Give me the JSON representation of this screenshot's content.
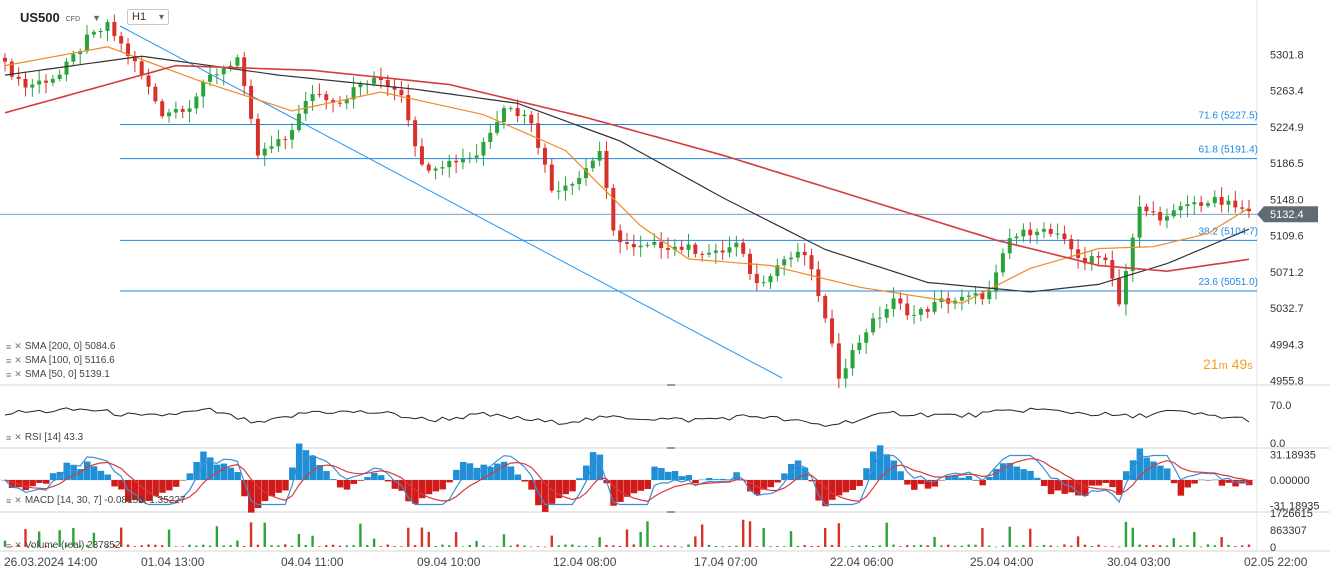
{
  "header": {
    "symbol": "US500",
    "symbol_sub": "CFD",
    "timeframe": "H1",
    "timeframe_caret": "▾"
  },
  "countdown": {
    "minutes": "21",
    "m_unit": "m",
    "seconds": "49",
    "s_unit": "s"
  },
  "legends": {
    "sma200": "SMA [200, 0] 5084.6",
    "sma100": "SMA [100, 0] 5116.6",
    "sma50": "SMA [50, 0] 5139.1",
    "rsi": "RSI [14] 43.3",
    "macd": "MACD [14, 30, 7] -0.08150, 1.35227",
    "volume": "Volume (real) 237852"
  },
  "colors": {
    "up": "#2aa33a",
    "down": "#d8312a",
    "sma50": "#f08a24",
    "sma100": "#333333",
    "sma200": "#d63c3c",
    "fib": "#1e88e5",
    "trendline": "#2196f3",
    "current_price_bg": "#5f6b75"
  },
  "chart_data": [
    {
      "type": "candlestick",
      "symbol": "US500",
      "timeframe": "H1",
      "price_axis_ticks": [
        5301.8,
        5263.4,
        5224.9,
        5186.5,
        5148.0,
        5109.6,
        5071.2,
        5032.7,
        4994.3,
        4955.8
      ],
      "price_axis_tick_labels": [
        "5301.8",
        "5263.4",
        "5224.9",
        "5186.5",
        "5148.0",
        "5109.6",
        "5071.2",
        "5032.7",
        "4994.3",
        "4955.8"
      ],
      "x_tick_labels": [
        "26.03.2024  14:00",
        "01.04  13:00",
        "04.04  11:00",
        "09.04  10:00",
        "12.04  08:00",
        "17.04  07:00",
        "22.04  06:00",
        "25.04  04:00",
        "30.04  03:00",
        "02.05  22:00"
      ],
      "current_price": 5132.4,
      "current_price_label": "5132.4",
      "fibonacci_levels": [
        {
          "label": "71.6 (5227.5)",
          "value": 5227.5
        },
        {
          "label": "61.8 (5191.4)",
          "value": 5191.4
        },
        {
          "label": "38.2 (5104.7)",
          "value": 5104.7
        },
        {
          "label": "23.6 (5051.0)",
          "value": 5051.0
        }
      ],
      "close_anchors": [
        [
          0,
          5290
        ],
        [
          3,
          5268
        ],
        [
          8,
          5280
        ],
        [
          12,
          5318
        ],
        [
          15,
          5332
        ],
        [
          19,
          5292
        ],
        [
          23,
          5240
        ],
        [
          27,
          5248
        ],
        [
          30,
          5278
        ],
        [
          34,
          5298
        ],
        [
          37,
          5195
        ],
        [
          41,
          5212
        ],
        [
          45,
          5262
        ],
        [
          49,
          5252
        ],
        [
          52,
          5270
        ],
        [
          55,
          5275
        ],
        [
          58,
          5262
        ],
        [
          61,
          5182
        ],
        [
          65,
          5188
        ],
        [
          69,
          5196
        ],
        [
          73,
          5248
        ],
        [
          77,
          5232
        ],
        [
          80,
          5158
        ],
        [
          84,
          5172
        ],
        [
          87,
          5200
        ],
        [
          89,
          5112
        ],
        [
          92,
          5095
        ],
        [
          96,
          5100
        ],
        [
          100,
          5096
        ],
        [
          104,
          5090
        ],
        [
          107,
          5100
        ],
        [
          110,
          5058
        ],
        [
          114,
          5085
        ],
        [
          117,
          5090
        ],
        [
          119,
          5048
        ],
        [
          122,
          4962
        ],
        [
          126,
          5010
        ],
        [
          130,
          5040
        ],
        [
          133,
          5025
        ],
        [
          137,
          5040
        ],
        [
          140,
          5042
        ],
        [
          144,
          5048
        ],
        [
          147,
          5106
        ],
        [
          151,
          5118
        ],
        [
          154,
          5108
        ],
        [
          158,
          5082
        ],
        [
          161,
          5088
        ],
        [
          163,
          5040
        ],
        [
          166,
          5138
        ],
        [
          170,
          5128
        ],
        [
          173,
          5143
        ],
        [
          177,
          5146
        ],
        [
          180,
          5140
        ],
        [
          182,
          5132.4
        ]
      ],
      "sma_series": [
        {
          "name": "SMA [50, 0]",
          "last": 5139.1,
          "anchors": [
            [
              0,
              5290
            ],
            [
              15,
              5310
            ],
            [
              28,
              5275
            ],
            [
              42,
              5242
            ],
            [
              55,
              5262
            ],
            [
              70,
              5238
            ],
            [
              82,
              5200
            ],
            [
              93,
              5120
            ],
            [
              100,
              5085
            ],
            [
              112,
              5078
            ],
            [
              125,
              5055
            ],
            [
              140,
              5038
            ],
            [
              150,
              5075
            ],
            [
              160,
              5096
            ],
            [
              168,
              5098
            ],
            [
              176,
              5112
            ],
            [
              182,
              5139.1
            ]
          ]
        },
        {
          "name": "SMA [100, 0]",
          "last": 5116.6,
          "anchors": [
            [
              0,
              5280
            ],
            [
              20,
              5300
            ],
            [
              40,
              5280
            ],
            [
              60,
              5265
            ],
            [
              75,
              5250
            ],
            [
              90,
              5210
            ],
            [
              105,
              5150
            ],
            [
              120,
              5095
            ],
            [
              135,
              5060
            ],
            [
              150,
              5050
            ],
            [
              160,
              5058
            ],
            [
              170,
              5080
            ],
            [
              182,
              5116.6
            ]
          ]
        },
        {
          "name": "SMA [200, 0]",
          "last": 5084.6,
          "anchors": [
            [
              0,
              5240
            ],
            [
              25,
              5290
            ],
            [
              45,
              5285
            ],
            [
              65,
              5270
            ],
            [
              85,
              5235
            ],
            [
              105,
              5195
            ],
            [
              125,
              5150
            ],
            [
              145,
              5105
            ],
            [
              160,
              5078
            ],
            [
              170,
              5072
            ],
            [
              182,
              5084.6
            ]
          ]
        }
      ]
    },
    {
      "type": "line",
      "name": "RSI [14]",
      "last": 43.3,
      "y_ticks": [
        70.0,
        0.0
      ],
      "y_tick_labels": [
        "70.0",
        "0.0"
      ],
      "anchors": [
        [
          0,
          55
        ],
        [
          12,
          62
        ],
        [
          20,
          48
        ],
        [
          30,
          60
        ],
        [
          37,
          35
        ],
        [
          45,
          58
        ],
        [
          55,
          56
        ],
        [
          62,
          42
        ],
        [
          70,
          52
        ],
        [
          80,
          38
        ],
        [
          90,
          48
        ],
        [
          100,
          42
        ],
        [
          110,
          50
        ],
        [
          120,
          32
        ],
        [
          130,
          55
        ],
        [
          140,
          50
        ],
        [
          150,
          62
        ],
        [
          158,
          55
        ],
        [
          165,
          48
        ],
        [
          170,
          58
        ],
        [
          182,
          43.3
        ]
      ]
    },
    {
      "type": "macd",
      "name": "MACD [14, 30, 7]",
      "macd_last": -0.0815,
      "signal_last": 1.35227,
      "y_ticks": [
        31.18935,
        0.0,
        -31.18935
      ],
      "y_tick_labels": [
        "31.18935",
        "0.00000",
        "-31.18935"
      ]
    },
    {
      "type": "bar",
      "name": "Volume (real)",
      "last": 237852,
      "y_ticks": [
        1726615,
        863307,
        0
      ],
      "y_tick_labels": [
        "1726615",
        "863307",
        "0"
      ]
    }
  ]
}
